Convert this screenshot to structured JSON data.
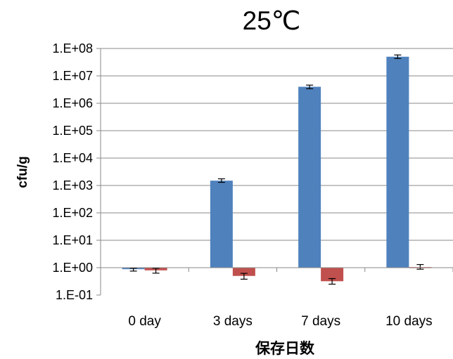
{
  "chart_data": {
    "type": "bar",
    "title": "25℃",
    "xlabel": "保存日数",
    "ylabel": "cfu/g",
    "y_scale": "log",
    "ylim": [
      0.1,
      100000000
    ],
    "y_ticks": [
      "1.E-01",
      "1.E+00",
      "1.E+01",
      "1.E+02",
      "1.E+03",
      "1.E+04",
      "1.E+05",
      "1.E+06",
      "1.E+07",
      "1.E+08"
    ],
    "categories": [
      "0 day",
      "3 days",
      "7 days",
      "10 days"
    ],
    "grid": true,
    "legend": "none",
    "series": [
      {
        "color": "#4f81bd",
        "values": [
          0.88,
          1500,
          4000000,
          50000000
        ],
        "error_low": [
          0.75,
          1300,
          3400000,
          43000000
        ],
        "error_high": [
          0.95,
          1750,
          4600000,
          58000000
        ]
      },
      {
        "color": "#c0504d",
        "values": [
          0.8,
          0.5,
          0.32,
          1.05
        ],
        "error_low": [
          0.63,
          0.38,
          0.25,
          0.88
        ],
        "error_high": [
          0.95,
          0.62,
          0.4,
          1.3
        ]
      }
    ]
  }
}
